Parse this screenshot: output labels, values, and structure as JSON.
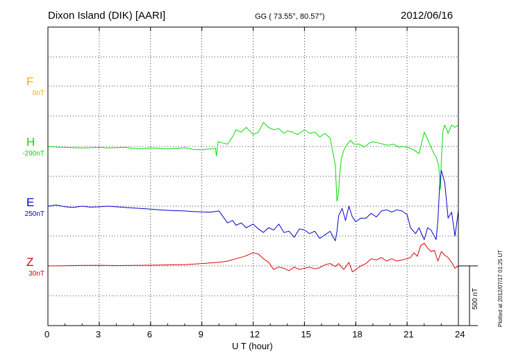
{
  "header": {
    "station": "Dixon Island (DIK)  [AARI]",
    "coords": "GG ( 73.55°,  80.57°)",
    "date": "2012/06/16"
  },
  "footer": {
    "plotted": "Plotted at 2012/07/17 01:25 UT"
  },
  "colors": {
    "F": "#ffaa00",
    "H": "#00dd00",
    "E": "#0000cc",
    "Z": "#dd0000"
  },
  "chart_data": {
    "type": "line",
    "xlabel": "U T (hour)",
    "ylabel": "",
    "xlim": [
      0,
      24
    ],
    "x_ticks": [
      "0",
      "3",
      "6",
      "9",
      "12",
      "15",
      "18",
      "21",
      "24"
    ],
    "grid": true,
    "scale_bar": {
      "label": "500 nT",
      "value_nT": 500
    },
    "components": [
      {
        "name": "F",
        "offset": "0nT"
      },
      {
        "name": "H",
        "offset": "-290nT"
      },
      {
        "name": "E",
        "offset": "250nT"
      },
      {
        "name": "Z",
        "offset": "30nT"
      }
    ],
    "series": [
      {
        "name": "H",
        "x": [
          0,
          0.5,
          1,
          1.5,
          2,
          2.5,
          3,
          3.5,
          4,
          4.5,
          5,
          5.5,
          6,
          6.5,
          7,
          7.5,
          8,
          8.5,
          9,
          9.5,
          9.8,
          9.85,
          9.95,
          10.2,
          10.5,
          10.8,
          11,
          11.3,
          11.6,
          12,
          12.3,
          12.6,
          12.9,
          13.2,
          13.5,
          13.8,
          14,
          14.3,
          14.6,
          15,
          15.3,
          15.6,
          15.9,
          16.2,
          16.5,
          16.8,
          16.9,
          17.0,
          17.05,
          17.15,
          17.3,
          17.5,
          17.7,
          17.9,
          18.2,
          18.5,
          18.8,
          19,
          19.3,
          19.6,
          19.9,
          20.2,
          20.5,
          20.8,
          21.1,
          21.4,
          21.7,
          22,
          22.2,
          22.5,
          22.7,
          22.85,
          22.95,
          23.0,
          23.1,
          23.2,
          23.4,
          23.6,
          23.8,
          24
        ],
        "values": [
          0,
          -5,
          -8,
          -10,
          -12,
          -10,
          -8,
          -12,
          -10,
          -8,
          -15,
          -18,
          -12,
          -15,
          -20,
          -15,
          -10,
          -25,
          -28,
          -20,
          -15,
          -80,
          40,
          30,
          20,
          80,
          140,
          120,
          160,
          100,
          120,
          200,
          160,
          140,
          150,
          110,
          130,
          120,
          100,
          140,
          110,
          120,
          80,
          110,
          70,
          -150,
          -460,
          -380,
          -250,
          -110,
          -30,
          20,
          50,
          20,
          20,
          -5,
          30,
          40,
          30,
          20,
          10,
          20,
          -5,
          0,
          -10,
          -30,
          -60,
          120,
          60,
          -40,
          -90,
          -160,
          -360,
          -120,
          130,
          180,
          110,
          180,
          160,
          180
        ]
      },
      {
        "name": "E",
        "x": [
          0,
          0.5,
          1,
          1.5,
          2,
          2.5,
          3,
          3.5,
          4,
          4.5,
          5,
          5.5,
          6,
          6.5,
          7,
          7.5,
          8,
          8.5,
          9,
          9.5,
          10,
          10.5,
          10.8,
          11,
          11.3,
          11.6,
          12,
          12.3,
          12.6,
          12.9,
          13.2,
          13.5,
          13.8,
          14.1,
          14.4,
          14.7,
          15,
          15.3,
          15.6,
          15.9,
          16.2,
          16.5,
          16.8,
          16.9,
          17.0,
          17.2,
          17.4,
          17.6,
          17.8,
          18,
          18.3,
          18.6,
          18.9,
          19.2,
          19.5,
          19.8,
          20.1,
          20.4,
          20.7,
          21,
          21.2,
          21.5,
          21.7,
          21.9,
          22,
          22.2,
          22.4,
          22.7,
          22.8,
          22.9,
          23.0,
          23.2,
          23.4,
          23.6,
          23.8,
          24
        ],
        "values": [
          0,
          10,
          -5,
          -10,
          0,
          -8,
          -5,
          0,
          -5,
          -10,
          -15,
          -20,
          -25,
          -30,
          -35,
          -38,
          -40,
          -45,
          -48,
          -50,
          -40,
          -140,
          -120,
          -160,
          -140,
          -180,
          -150,
          -190,
          -220,
          -180,
          -200,
          -150,
          -220,
          -210,
          -260,
          -190,
          -200,
          -230,
          -210,
          -270,
          -240,
          -210,
          -290,
          -210,
          -80,
          -20,
          -120,
          0,
          -90,
          -130,
          -100,
          -100,
          -60,
          -90,
          -40,
          -30,
          -50,
          -30,
          -40,
          -70,
          -180,
          -230,
          -180,
          -250,
          -280,
          -180,
          -200,
          -280,
          -120,
          160,
          300,
          200,
          -100,
          -50,
          -250,
          -40
        ]
      },
      {
        "name": "Z",
        "x": [
          0,
          1,
          2,
          3,
          4,
          5,
          6,
          7,
          8,
          9,
          9.5,
          10,
          10.5,
          11,
          11.5,
          12,
          12.3,
          12.6,
          12.9,
          13.2,
          13.5,
          13.8,
          14.1,
          14.4,
          14.7,
          15,
          15.3,
          15.6,
          15.9,
          16.2,
          16.5,
          16.8,
          17,
          17.3,
          17.6,
          17.8,
          18,
          18.3,
          18.6,
          18.9,
          19.2,
          19.5,
          19.8,
          20.1,
          20.4,
          20.7,
          21,
          21.2,
          21.4,
          21.6,
          21.8,
          22,
          22.2,
          22.4,
          22.6,
          22.8,
          23,
          23.2,
          23.4,
          23.6,
          23.8,
          24
        ],
        "values": [
          0,
          2,
          4,
          5,
          3,
          4,
          6,
          8,
          10,
          20,
          25,
          30,
          40,
          60,
          80,
          110,
          100,
          60,
          30,
          -30,
          -10,
          -20,
          -40,
          -10,
          -30,
          -20,
          -10,
          -25,
          -15,
          10,
          20,
          -5,
          20,
          -30,
          30,
          -50,
          -30,
          0,
          20,
          60,
          50,
          70,
          40,
          60,
          40,
          50,
          60,
          70,
          110,
          80,
          170,
          190,
          150,
          120,
          130,
          40,
          120,
          90,
          70,
          30,
          -20,
          0
        ]
      }
    ]
  }
}
